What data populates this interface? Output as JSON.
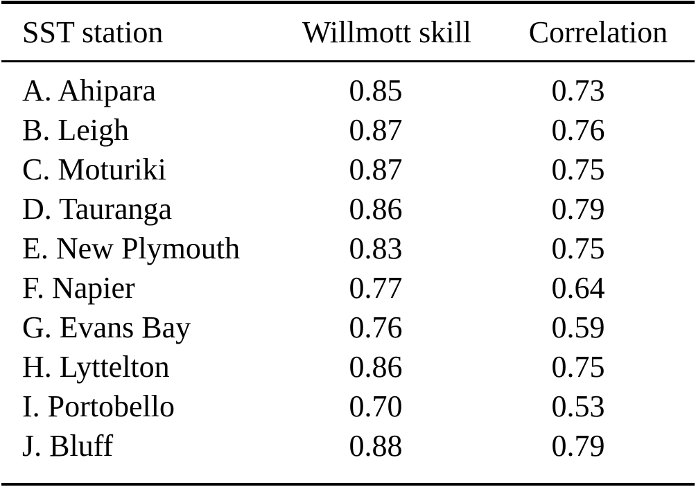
{
  "page": {
    "background": "#ffffff",
    "text_color": "#000000",
    "rule_color": "#000000"
  },
  "table": {
    "columns": [
      "SST station",
      "Willmott skill",
      "Correlation"
    ],
    "rows": [
      [
        "A. Ahipara",
        "0.85",
        "0.73"
      ],
      [
        "B. Leigh",
        "0.87",
        "0.76"
      ],
      [
        "C. Moturiki",
        "0.87",
        "0.75"
      ],
      [
        "D. Tauranga",
        "0.86",
        "0.79"
      ],
      [
        "E. New Plymouth",
        "0.83",
        "0.75"
      ],
      [
        "F. Napier",
        "0.77",
        "0.64"
      ],
      [
        "G. Evans Bay",
        "0.76",
        "0.59"
      ],
      [
        "H. Lyttelton",
        "0.86",
        "0.75"
      ],
      [
        "I. Portobello",
        "0.70",
        "0.53"
      ],
      [
        "J. Bluff",
        "0.88",
        "0.79"
      ]
    ]
  },
  "chart_data": {
    "type": "table",
    "title": "",
    "columns": [
      "SST station",
      "Willmott skill",
      "Correlation"
    ],
    "categories": [
      "A. Ahipara",
      "B. Leigh",
      "C. Moturiki",
      "D. Tauranga",
      "E. New Plymouth",
      "F. Napier",
      "G. Evans Bay",
      "H. Lyttelton",
      "I. Portobello",
      "J. Bluff"
    ],
    "series": [
      {
        "name": "Willmott skill",
        "values": [
          0.85,
          0.87,
          0.87,
          0.86,
          0.83,
          0.77,
          0.76,
          0.86,
          0.7,
          0.88
        ]
      },
      {
        "name": "Correlation",
        "values": [
          0.73,
          0.76,
          0.75,
          0.79,
          0.75,
          0.64,
          0.59,
          0.75,
          0.53,
          0.79
        ]
      }
    ],
    "layout": {
      "grid": false,
      "rules": [
        "top-thick",
        "below-header-thin",
        "bottom-medium"
      ]
    }
  }
}
